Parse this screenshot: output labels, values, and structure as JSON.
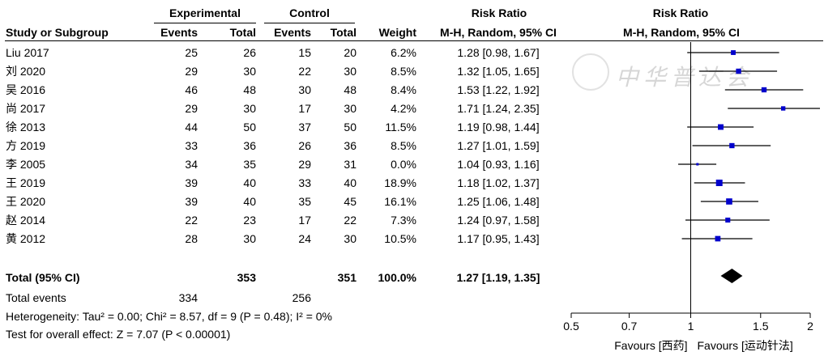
{
  "headers": {
    "experimental": "Experimental",
    "control": "Control",
    "risk_ratio_left": "Risk Ratio",
    "risk_ratio_right": "Risk Ratio",
    "study": "Study or Subgroup",
    "exp_events": "Events",
    "exp_total": "Total",
    "ctl_events": "Events",
    "ctl_total": "Total",
    "weight": "Weight",
    "method_left": "M-H, Random, 95% CI",
    "method_right": "M-H, Random, 95% CI"
  },
  "studies": [
    {
      "name": "Liu 2017",
      "exp_events": "25",
      "exp_total": "26",
      "ctl_events": "15",
      "ctl_total": "20",
      "weight": "6.2%",
      "ci_text": "1.28 [0.98, 1.67]"
    },
    {
      "name": "刘 2020",
      "exp_events": "29",
      "exp_total": "30",
      "ctl_events": "22",
      "ctl_total": "30",
      "weight": "8.5%",
      "ci_text": "1.32 [1.05, 1.65]"
    },
    {
      "name": "吴 2016",
      "exp_events": "46",
      "exp_total": "48",
      "ctl_events": "30",
      "ctl_total": "48",
      "weight": "8.4%",
      "ci_text": "1.53 [1.22, 1.92]"
    },
    {
      "name": "尚 2017",
      "exp_events": "29",
      "exp_total": "30",
      "ctl_events": "17",
      "ctl_total": "30",
      "weight": "4.2%",
      "ci_text": "1.71 [1.24, 2.35]"
    },
    {
      "name": "徐 2013",
      "exp_events": "44",
      "exp_total": "50",
      "ctl_events": "37",
      "ctl_total": "50",
      "weight": "11.5%",
      "ci_text": "1.19 [0.98, 1.44]"
    },
    {
      "name": "方 2019",
      "exp_events": "33",
      "exp_total": "36",
      "ctl_events": "26",
      "ctl_total": "36",
      "weight": "8.5%",
      "ci_text": "1.27 [1.01, 1.59]"
    },
    {
      "name": "李 2005",
      "exp_events": "34",
      "exp_total": "35",
      "ctl_events": "29",
      "ctl_total": "31",
      "weight": "0.0%",
      "ci_text": "1.04 [0.93, 1.16]"
    },
    {
      "name": "王 2019",
      "exp_events": "39",
      "exp_total": "40",
      "ctl_events": "33",
      "ctl_total": "40",
      "weight": "18.9%",
      "ci_text": "1.18 [1.02, 1.37]"
    },
    {
      "name": "王 2020",
      "exp_events": "39",
      "exp_total": "40",
      "ctl_events": "35",
      "ctl_total": "45",
      "weight": "16.1%",
      "ci_text": "1.25 [1.06, 1.48]"
    },
    {
      "name": "赵 2014",
      "exp_events": "22",
      "exp_total": "23",
      "ctl_events": "17",
      "ctl_total": "22",
      "weight": "7.3%",
      "ci_text": "1.24 [0.97, 1.58]"
    },
    {
      "name": "黄 2012",
      "exp_events": "28",
      "exp_total": "30",
      "ctl_events": "24",
      "ctl_total": "30",
      "weight": "10.5%",
      "ci_text": "1.17 [0.95, 1.43]"
    }
  ],
  "total": {
    "label": "Total (95% CI)",
    "exp_total": "353",
    "ctl_total": "351",
    "weight": "100.0%",
    "ci_text": "1.27 [1.19, 1.35]"
  },
  "total_events": {
    "label": "Total events",
    "exp": "334",
    "ctl": "256"
  },
  "heterogeneity": "Heterogeneity: Tau² = 0.00; Chi² = 8.57, df = 9 (P = 0.48); I² = 0%",
  "overall_effect": "Test for overall effect: Z = 7.07 (P < 0.00001)",
  "axis": {
    "ticks": [
      "0.5",
      "0.7",
      "1",
      "1.5",
      "2"
    ],
    "favours_left": "Favours [西药]",
    "favours_right": "Favours [运动针法]"
  },
  "watermark": {
    "text": "中华普达会"
  },
  "colors": {
    "marker": "#0000cc",
    "line": "#000000",
    "diamond": "#000000"
  },
  "chart_data": {
    "type": "forest",
    "scale": "log",
    "xlim": [
      0.5,
      2
    ],
    "xticks": [
      0.5,
      0.7,
      1,
      1.5,
      2
    ],
    "reference_line": 1,
    "estimates": [
      {
        "rr": 1.28,
        "lo": 0.98,
        "hi": 1.67,
        "weight": 6.2
      },
      {
        "rr": 1.32,
        "lo": 1.05,
        "hi": 1.65,
        "weight": 8.5
      },
      {
        "rr": 1.53,
        "lo": 1.22,
        "hi": 1.92,
        "weight": 8.4
      },
      {
        "rr": 1.71,
        "lo": 1.24,
        "hi": 2.35,
        "weight": 4.2
      },
      {
        "rr": 1.19,
        "lo": 0.98,
        "hi": 1.44,
        "weight": 11.5
      },
      {
        "rr": 1.27,
        "lo": 1.01,
        "hi": 1.59,
        "weight": 8.5
      },
      {
        "rr": 1.04,
        "lo": 0.93,
        "hi": 1.16,
        "weight": 0.0
      },
      {
        "rr": 1.18,
        "lo": 1.02,
        "hi": 1.37,
        "weight": 18.9
      },
      {
        "rr": 1.25,
        "lo": 1.06,
        "hi": 1.48,
        "weight": 16.1
      },
      {
        "rr": 1.24,
        "lo": 0.97,
        "hi": 1.58,
        "weight": 7.3
      },
      {
        "rr": 1.17,
        "lo": 0.95,
        "hi": 1.43,
        "weight": 10.5
      }
    ],
    "pooled": {
      "rr": 1.27,
      "lo": 1.19,
      "hi": 1.35
    }
  }
}
